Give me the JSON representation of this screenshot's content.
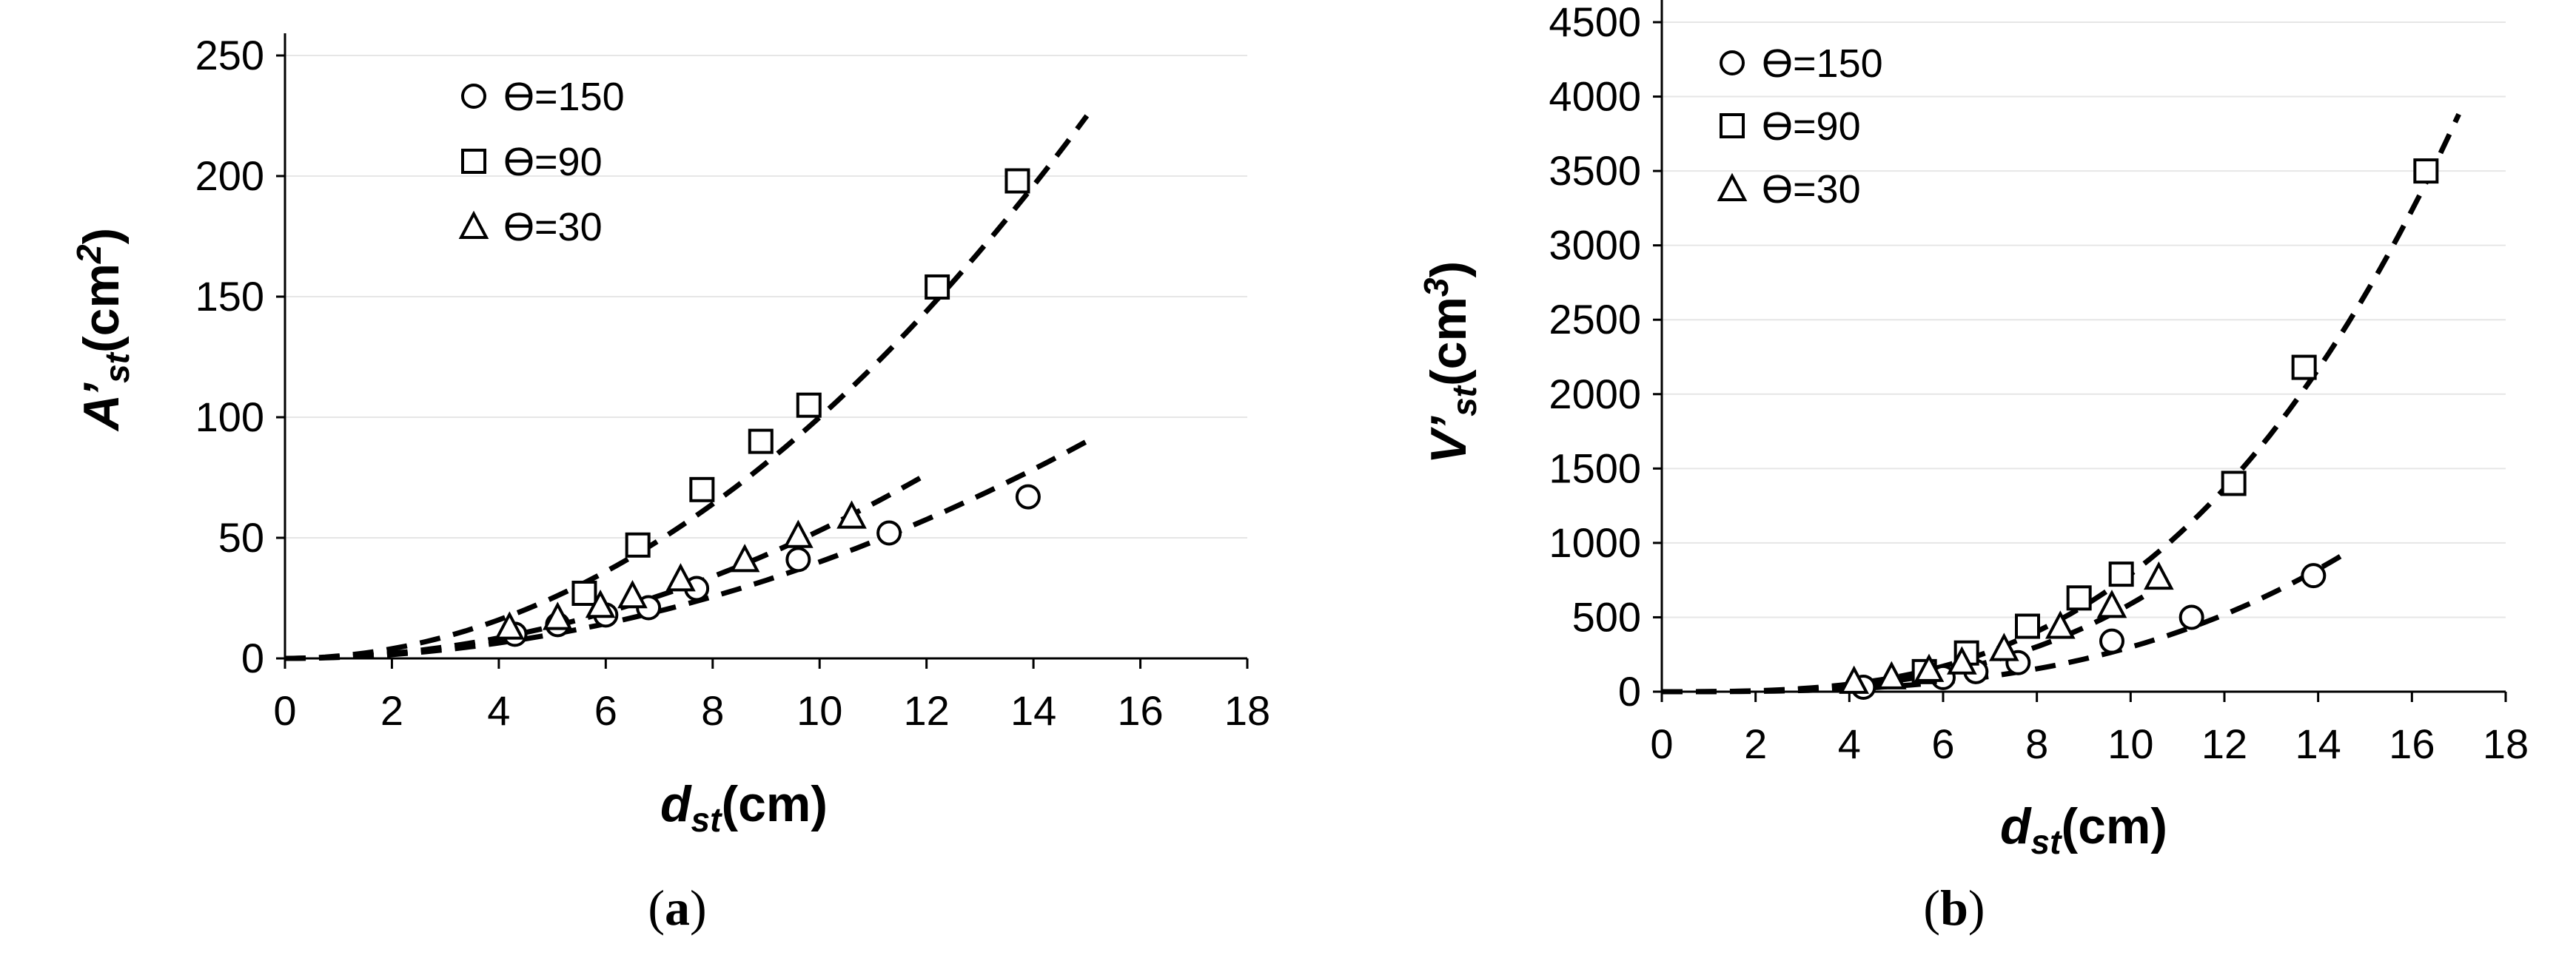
{
  "chart_data": [
    {
      "id": "a",
      "type": "scatter",
      "panel_label": "a",
      "xlabel": "d",
      "xlabel_sub": "st",
      "xlabel_unit": "(cm)",
      "ylabel": "A’",
      "ylabel_sub": "st",
      "ylabel_unit": "(cm",
      "ylabel_sup": "2",
      "ylabel_close": ")",
      "xlim": [
        0,
        18
      ],
      "ylim": [
        0,
        250
      ],
      "xticks": [
        0,
        2,
        4,
        6,
        8,
        10,
        12,
        14,
        16,
        18
      ],
      "yticks": [
        0,
        50,
        100,
        150,
        200,
        250
      ],
      "grid": "horizontal",
      "legend_position": "top-left",
      "series": [
        {
          "name": "ϴ=150",
          "marker": "circle",
          "x": [
            4.3,
            5.1,
            6.0,
            6.8,
            7.7,
            9.6,
            11.3,
            13.9
          ],
          "y": [
            10,
            14,
            18,
            21,
            29,
            41,
            52,
            67
          ],
          "fit": {
            "coef": 0.4,
            "exp": 2,
            "x_range": [
              0,
              15
            ]
          }
        },
        {
          "name": "ϴ=90",
          "marker": "square",
          "x": [
            5.6,
            6.6,
            7.8,
            8.9,
            9.8,
            12.2,
            13.7
          ],
          "y": [
            27,
            47,
            70,
            90,
            105,
            154,
            198
          ],
          "fit": {
            "coef": 1.0,
            "exp": 2,
            "x_range": [
              0,
              15
            ]
          }
        },
        {
          "name": "ϴ=30",
          "marker": "triangle",
          "x": [
            4.2,
            5.1,
            5.9,
            6.5,
            7.4,
            8.6,
            9.6,
            10.6
          ],
          "y": [
            13,
            17,
            22,
            26,
            33,
            41,
            51,
            59
          ],
          "fit": {
            "coef": 0.53,
            "exp": 2,
            "x_range": [
              0,
              12
            ]
          }
        }
      ]
    },
    {
      "id": "b",
      "type": "scatter",
      "panel_label": "b",
      "xlabel": "d",
      "xlabel_sub": "st",
      "xlabel_unit": "(cm)",
      "ylabel": "V’",
      "ylabel_sub": "st",
      "ylabel_unit": "(cm",
      "ylabel_sup": "3",
      "ylabel_close": ")",
      "xlim": [
        0,
        18
      ],
      "ylim": [
        0,
        4500
      ],
      "xticks": [
        0,
        2,
        4,
        6,
        8,
        10,
        12,
        14,
        16,
        18
      ],
      "yticks": [
        0,
        500,
        1000,
        1500,
        2000,
        2500,
        3000,
        3500,
        4000,
        4500
      ],
      "grid": "horizontal",
      "legend_position": "top-left",
      "series": [
        {
          "name": "ϴ=150",
          "marker": "circle",
          "x": [
            4.3,
            6.0,
            6.7,
            7.6,
            9.6,
            11.3,
            13.9
          ],
          "y": [
            30,
            95,
            135,
            195,
            340,
            500,
            780
          ],
          "fit": {
            "coef": 0.3,
            "exp": 3,
            "x_range": [
              0,
              14.7
            ]
          }
        },
        {
          "name": "ϴ=90",
          "marker": "square",
          "x": [
            5.6,
            6.5,
            7.8,
            8.9,
            9.8,
            12.2,
            13.7,
            16.3
          ],
          "y": [
            135,
            260,
            440,
            630,
            790,
            1400,
            2180,
            3500
          ],
          "fit": {
            "coef": 0.79,
            "exp": 3,
            "x_range": [
              0,
              17
            ]
          }
        },
        {
          "name": "ϴ=30",
          "marker": "triangle",
          "x": [
            4.1,
            4.9,
            5.7,
            6.4,
            7.3,
            8.5,
            9.6,
            10.6
          ],
          "y": [
            70,
            100,
            150,
            200,
            290,
            440,
            580,
            770
          ],
          "fit": {
            "coef": 0.59,
            "exp": 3,
            "x_range": [
              0,
              10.4
            ]
          }
        }
      ]
    }
  ]
}
